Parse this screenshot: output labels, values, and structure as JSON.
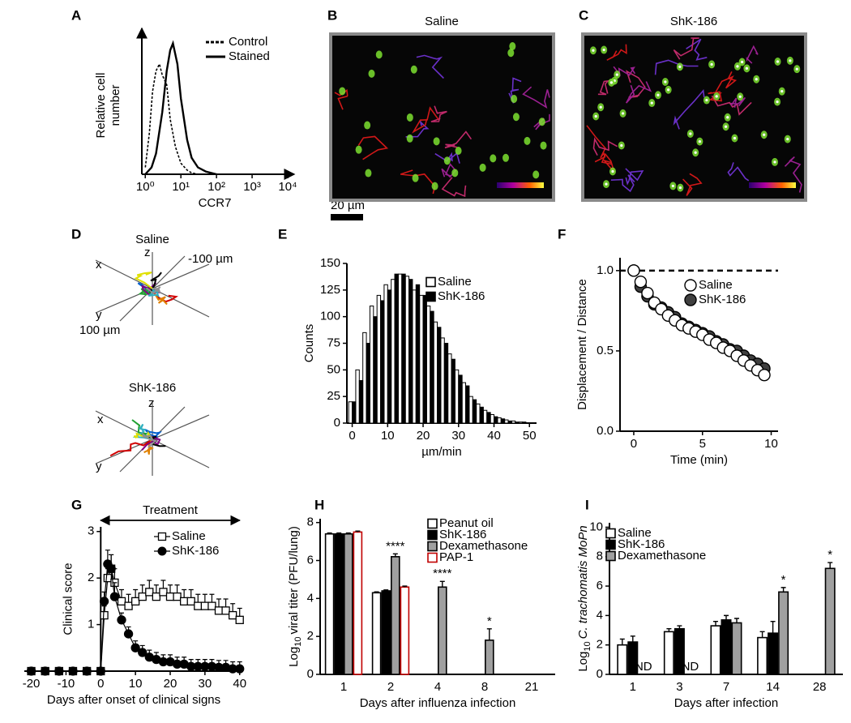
{
  "panel_labels": [
    "A",
    "B",
    "C",
    "D",
    "E",
    "F",
    "G",
    "H",
    "I"
  ],
  "images": [
    {
      "title": "Saline"
    },
    {
      "title": "ShK-186"
    }
  ],
  "scale_bar": "20 µm",
  "tracks": [
    {
      "title": "Saline",
      "axis_labels": [
        "x",
        "y",
        "z"
      ],
      "distance_labels": [
        "-100 µm",
        "100 µm"
      ]
    },
    {
      "title": "ShK-186",
      "axis_labels": [
        "x",
        "y",
        "z"
      ]
    }
  ],
  "chart_data": [
    {
      "type": "density",
      "x_label": "CCR7",
      "y_label": [
        "Relative cell",
        "number"
      ],
      "log_x": true,
      "xlim": [
        0.8,
        10000
      ],
      "xticks": [
        {
          "value": 1,
          "label": "10⁰"
        },
        {
          "value": 10,
          "label": "10¹"
        },
        {
          "value": 100,
          "label": "10²"
        },
        {
          "value": 1000,
          "label": "10³"
        },
        {
          "value": 10000,
          "label": "10⁴"
        }
      ],
      "ylim": [
        0,
        100
      ],
      "legend": "upper right",
      "series": [
        {
          "name": "Control",
          "color": "#000000",
          "dashed": true,
          "x": [
            1,
            1.3,
            1.6,
            2,
            2.5,
            3,
            4,
            5,
            7,
            10,
            15,
            20,
            30
          ],
          "values": [
            5,
            30,
            60,
            75,
            80,
            72,
            65,
            40,
            20,
            8,
            3,
            1,
            0
          ]
        },
        {
          "name": "Stained",
          "color": "#000000",
          "dashed": false,
          "x": [
            1,
            1.5,
            2,
            3,
            4,
            5,
            6,
            8,
            10,
            15,
            20,
            30,
            50,
            100
          ],
          "values": [
            0,
            5,
            15,
            45,
            75,
            90,
            95,
            80,
            55,
            25,
            12,
            5,
            2,
            0
          ]
        }
      ]
    },
    {
      "type": "histogram",
      "x_label": "µm/min",
      "y_label": "Counts",
      "bins": [
        -1,
        1,
        3,
        5,
        7,
        9,
        11,
        13,
        15,
        17,
        19,
        21,
        23,
        25,
        27,
        29,
        31,
        33,
        35,
        37,
        39,
        41,
        43,
        45,
        47,
        49
      ],
      "xlim": [
        -1.5,
        52
      ],
      "xticks": [
        0,
        10,
        20,
        30,
        40,
        50
      ],
      "ylim": [
        0,
        150
      ],
      "yticks": [
        0,
        25,
        50,
        75,
        100,
        125,
        150
      ],
      "legend": "upper right",
      "series": [
        {
          "name": "Saline",
          "color": "#ffffff",
          "values": [
            20,
            50,
            85,
            110,
            120,
            130,
            135,
            140,
            138,
            125,
            120,
            110,
            95,
            80,
            65,
            50,
            38,
            25,
            18,
            12,
            8,
            5,
            3,
            2,
            1
          ]
        },
        {
          "name": "ShK-186",
          "color": "#000000",
          "values": [
            20,
            40,
            75,
            100,
            115,
            125,
            140,
            140,
            135,
            130,
            120,
            105,
            90,
            75,
            60,
            45,
            35,
            22,
            15,
            10,
            6,
            4,
            2,
            1,
            1
          ]
        }
      ]
    },
    {
      "type": "scatter",
      "x_label": "Time (min)",
      "y_label": "Displacement / Distance",
      "x": [
        0,
        0.5,
        1,
        1.5,
        2,
        2.5,
        3,
        3.5,
        4,
        4.5,
        5,
        5.5,
        6,
        6.5,
        7,
        7.5,
        8,
        8.5,
        9,
        9.5
      ],
      "xlim": [
        -1,
        10.5
      ],
      "xticks": [
        0,
        5,
        10
      ],
      "ylim": [
        0,
        1.08
      ],
      "yticks": [
        {
          "value": 0,
          "label": "0.0"
        },
        {
          "value": 0.5,
          "label": "0.5"
        },
        {
          "value": 1,
          "label": "1.0"
        }
      ],
      "reference_line": 1,
      "legend": "upper right",
      "series": [
        {
          "name": "Saline",
          "color": "#ffffff",
          "values": [
            1,
            0.93,
            0.86,
            0.8,
            0.76,
            0.72,
            0.69,
            0.66,
            0.64,
            0.62,
            0.6,
            0.57,
            0.55,
            0.52,
            0.5,
            0.47,
            0.44,
            0.41,
            0.38,
            0.35
          ]
        },
        {
          "name": "ShK-186",
          "color": "#404040",
          "values": [
            1,
            0.9,
            0.84,
            0.79,
            0.77,
            0.74,
            0.71,
            0.67,
            0.65,
            0.63,
            0.61,
            0.59,
            0.56,
            0.54,
            0.51,
            0.5,
            0.47,
            0.44,
            0.42,
            0.39
          ]
        }
      ]
    },
    {
      "type": "line",
      "x_label": "Days after onset of clinical signs",
      "y_label": "Clinical score",
      "annotation": "Treatment",
      "x": [
        -20,
        -16,
        -12,
        -8,
        -4,
        0,
        1,
        2,
        3,
        4,
        6,
        8,
        10,
        12,
        14,
        16,
        18,
        20,
        22,
        24,
        26,
        28,
        30,
        32,
        34,
        36,
        38,
        40
      ],
      "xlim": [
        -22,
        41
      ],
      "xticks": [
        -20,
        -10,
        0,
        10,
        20,
        30,
        40
      ],
      "ylim": [
        0,
        3.1
      ],
      "yticks": [
        1,
        2,
        3
      ],
      "legend": "upper right",
      "series": [
        {
          "name": "Saline",
          "color": "#ffffff",
          "marker": "square",
          "values": [
            0,
            0,
            0,
            0,
            0,
            0,
            1.2,
            2.0,
            2.2,
            1.9,
            1.5,
            1.4,
            1.5,
            1.6,
            1.7,
            1.6,
            1.7,
            1.6,
            1.6,
            1.5,
            1.5,
            1.4,
            1.4,
            1.4,
            1.3,
            1.3,
            1.2,
            1.1
          ],
          "errors": [
            null,
            null,
            null,
            null,
            null,
            0,
            0.2,
            0.2,
            0.3,
            0.3,
            0.25,
            0.25,
            0.25,
            0.25,
            0.25,
            0.25,
            0.25,
            0.25,
            0.25,
            0.25,
            0.25,
            0.25,
            0.25,
            0.25,
            0.25,
            0.25,
            0.25,
            0.25
          ]
        },
        {
          "name": "ShK-186",
          "color": "#000000",
          "marker": "circle",
          "values": [
            0,
            0,
            0,
            0,
            0,
            0,
            1.5,
            2.3,
            2.2,
            1.6,
            1.1,
            0.8,
            0.5,
            0.4,
            0.3,
            0.25,
            0.2,
            0.2,
            0.15,
            0.15,
            0.1,
            0.1,
            0.1,
            0.1,
            0.08,
            0.08,
            0.05,
            0.05
          ],
          "errors": [
            null,
            null,
            null,
            null,
            null,
            0,
            0.2,
            0.3,
            0.3,
            0.3,
            0.15,
            0.15,
            0.15,
            0.15,
            0.15,
            0.15,
            0.15,
            0.15,
            0.15,
            0.15,
            0.15,
            0.15,
            0.15,
            0.15,
            0.15,
            0.15,
            0.15,
            0.15
          ]
        }
      ]
    },
    {
      "type": "grouped_bar",
      "x_label": "Days after influenza infection",
      "y_label": [
        "Log",
        "10",
        "viral titer (PFU/lung)"
      ],
      "categories": [
        "1",
        "2",
        "4",
        "8",
        "21"
      ],
      "ylim": [
        0,
        8.2
      ],
      "yticks": [
        0,
        2,
        4,
        6,
        8
      ],
      "legend": "upper right",
      "series": [
        {
          "name": "Peanut oil",
          "color": "#ffffff",
          "edge": "#000000",
          "values": [
            7.4,
            4.3,
            0,
            0,
            0
          ],
          "errors": [
            0.05,
            0.05,
            0,
            0,
            0
          ],
          "annotations": [
            null,
            null,
            null,
            null,
            null
          ]
        },
        {
          "name": "ShK-186",
          "color": "#000000",
          "edge": "#000000",
          "values": [
            7.4,
            4.4,
            0,
            0,
            0
          ],
          "errors": [
            0.05,
            0.05,
            0,
            0,
            0
          ],
          "annotations": [
            null,
            null,
            null,
            null,
            null
          ]
        },
        {
          "name": "Dexamethasone",
          "color": "#a0a0a0",
          "edge": "#000000",
          "values": [
            7.4,
            6.2,
            4.6,
            1.8,
            0
          ],
          "errors": [
            0.05,
            0.15,
            0.3,
            0.6,
            0
          ],
          "annotations": [
            null,
            "****",
            "****",
            "*",
            null
          ]
        },
        {
          "name": "PAP-1",
          "color": "#ffffff",
          "edge": "#c00000",
          "values": [
            7.5,
            4.6,
            0,
            0,
            0
          ],
          "errors": [
            0.05,
            0.05,
            0,
            0,
            0
          ],
          "annotations": [
            null,
            null,
            null,
            null,
            null
          ]
        }
      ]
    },
    {
      "type": "grouped_bar",
      "x_label": "Days after infection",
      "y_label": [
        "Log",
        "10",
        "C. trachomatis MoPn"
      ],
      "categories": [
        "1",
        "3",
        "7",
        "14",
        "28"
      ],
      "ylim": [
        0,
        10.3
      ],
      "yticks": [
        0,
        2,
        4,
        6,
        8,
        10
      ],
      "legend": "upper left",
      "series": [
        {
          "name": "Saline",
          "color": "#ffffff",
          "edge": "#000000",
          "values": [
            2.0,
            2.9,
            3.3,
            2.5,
            0
          ],
          "errors": [
            0.4,
            0.2,
            0.3,
            0.4,
            0
          ],
          "annotations": [
            null,
            null,
            null,
            null,
            null
          ]
        },
        {
          "name": "ShK-186",
          "color": "#000000",
          "edge": "#000000",
          "values": [
            2.2,
            3.1,
            3.7,
            2.8,
            0
          ],
          "errors": [
            0.4,
            0.2,
            0.3,
            0.8,
            0
          ],
          "annotations": [
            null,
            null,
            null,
            null,
            null
          ]
        },
        {
          "name": "Dexamethasone",
          "color": "#a0a0a0",
          "edge": "#000000",
          "values": [
            null,
            null,
            3.5,
            5.6,
            7.2
          ],
          "errors": [
            null,
            null,
            0.3,
            0.3,
            0.4
          ],
          "annotations": [
            "ND",
            "ND",
            null,
            "*",
            "*"
          ]
        }
      ]
    }
  ]
}
